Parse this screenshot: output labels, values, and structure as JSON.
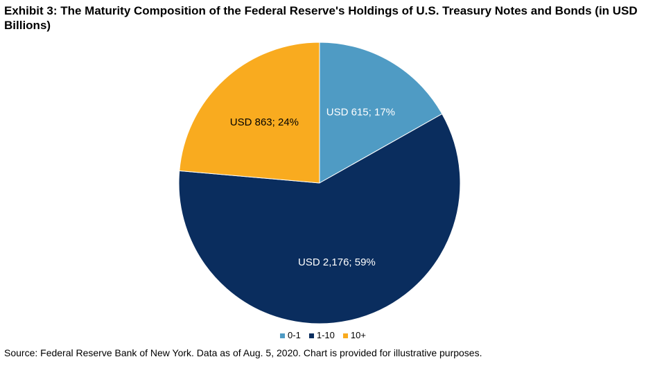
{
  "title": "Exhibit 3: The Maturity Composition of the Federal Reserve's Holdings of U.S. Treasury Notes and Bonds (in USD Billions)",
  "source": "Source: Federal Reserve Bank of New York. Data as of Aug. 5, 2020. Chart is provided for illustrative purposes.",
  "colors": {
    "slice_0_1": "#4f9bc4",
    "slice_1_10": "#0a2d5e",
    "slice_10_plus": "#f9ab1f",
    "label_dark_slice": "#ffffff",
    "label_light_slice": "#000000"
  },
  "chart_data": {
    "type": "pie",
    "title": "Exhibit 3: The Maturity Composition of the Federal Reserve's Holdings of U.S. Treasury Notes and Bonds (in USD Billions)",
    "start": "12 o'clock",
    "direction": "clockwise",
    "legend_position": "bottom",
    "categories": [
      "0-1",
      "1-10",
      "10+"
    ],
    "values": [
      615,
      2176,
      863
    ],
    "percents": [
      17,
      59,
      24
    ],
    "data_labels": [
      "USD 615; 17%",
      "USD 2,176; 59%",
      "USD 863; 24%"
    ],
    "legend": [
      "0-1",
      "1-10",
      "10+"
    ]
  }
}
